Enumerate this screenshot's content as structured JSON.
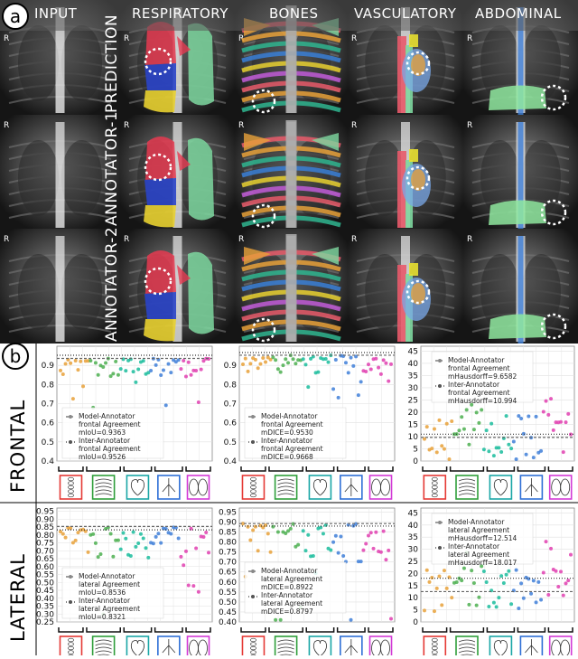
{
  "panel_a": {
    "label": "a",
    "columns": [
      "INPUT",
      "RESPIRATORY",
      "BONES",
      "VASCULATORY",
      "ABDOMINAL"
    ],
    "rows": [
      "PREDICTION",
      "ANNOTATOR-1",
      "ANNOTATOR-2"
    ],
    "corner_marker": "R"
  },
  "panel_b": {
    "label": "b",
    "row_labels": [
      "FRONTAL",
      "LATERAL"
    ]
  },
  "chart_data": [
    {
      "type": "scatter",
      "view": "frontal",
      "metric": "mIoU",
      "ylim": [
        0.4,
        1.0
      ],
      "yticks": [
        "0.9",
        "0.8",
        "0.7",
        "0.6",
        "0.5",
        "0.4"
      ],
      "legend": {
        "model_title": "Model-Annotator",
        "model_sub": "frontal Agreement",
        "model_value": "mIoU=0.9363",
        "inter_title": "Inter-Annotator",
        "inter_sub": "frontal Agreement",
        "inter_value": "mIoU=0.9526"
      },
      "model_mean": 0.9363,
      "inter_mean": 0.9526
    },
    {
      "type": "scatter",
      "view": "frontal",
      "metric": "mDICE",
      "ylim": [
        0.4,
        1.0
      ],
      "yticks": [
        "0.9",
        "0.8",
        "0.7",
        "0.6",
        "0.5",
        "0.4"
      ],
      "legend": {
        "model_title": "Model-Annotator",
        "model_sub": "frontal Agreement",
        "model_value": "mDICE=0.9530",
        "inter_title": "Inter-Annotator",
        "inter_sub": "frontal Agreement",
        "inter_value": "mDICE=0.9668"
      },
      "model_mean": 0.953,
      "inter_mean": 0.9668
    },
    {
      "type": "scatter",
      "view": "frontal",
      "metric": "mHausdorff",
      "ylim": [
        0,
        47
      ],
      "yticks": [
        "45",
        "40",
        "35",
        "30",
        "25",
        "20",
        "15",
        "10",
        "5",
        "0"
      ],
      "legend": {
        "model_title": "Model-Annotator",
        "model_sub": "frontal Agreement",
        "model_value": "mHausdorff=9.6582",
        "inter_title": "Inter-Annotator",
        "inter_sub": "frontal Agreement",
        "inter_value": "mHausdorff=10.994"
      },
      "model_mean": 9.6582,
      "inter_mean": 10.994
    },
    {
      "type": "scatter",
      "view": "lateral",
      "metric": "mIoU",
      "ylim": [
        0.25,
        0.97
      ],
      "yticks": [
        "0.95",
        "0.90",
        "0.85",
        "0.80",
        "0.75",
        "0.70",
        "0.65",
        "0.60",
        "0.55",
        "0.50",
        "0.45",
        "0.40",
        "0.35",
        "0.30",
        "0.25"
      ],
      "legend": {
        "model_title": "Model-Annotator",
        "model_sub": "lateral Agreement",
        "model_value": "mIoU=0.8536",
        "inter_title": "Inter-Annotator",
        "inter_sub": "lateral Agreement",
        "inter_value": "mIoU=0.8321"
      },
      "model_mean": 0.8536,
      "inter_mean": 0.8321
    },
    {
      "type": "scatter",
      "view": "lateral",
      "metric": "mDICE",
      "ylim": [
        0.4,
        0.97
      ],
      "yticks": [
        "0.95",
        "0.90",
        "0.85",
        "0.80",
        "0.75",
        "0.70",
        "0.65",
        "0.60",
        "0.55",
        "0.50",
        "0.45",
        "0.40"
      ],
      "legend": {
        "model_title": "Model-Annotator",
        "model_sub": "lateral Agreement",
        "model_value": "mDICE=0.8922",
        "inter_title": "Inter-Annotator",
        "inter_sub": "lateral Agreement",
        "inter_value": "mDICE=0.8797"
      },
      "model_mean": 0.8922,
      "inter_mean": 0.8797
    },
    {
      "type": "scatter",
      "view": "lateral",
      "metric": "mHausdorff",
      "ylim": [
        0,
        47
      ],
      "yticks": [
        "45",
        "40",
        "35",
        "30",
        "25",
        "20",
        "15",
        "10",
        "5",
        "0"
      ],
      "legend": {
        "model_title": "Model-Annotator",
        "model_sub": "lateral Agreement",
        "model_value": "mHausdorff=12.514",
        "inter_title": "Inter-Annotator",
        "inter_sub": "lateral Agreement",
        "inter_value": "mHausdorff=18.017"
      },
      "model_mean": 12.514,
      "inter_mean": 18.017
    }
  ],
  "colors": {
    "bones": "#e8a13a",
    "respiratory": "#4caf50",
    "vasculatory": "#1abc9c",
    "abdominal": "#3f7fd8",
    "heart": "#9b59b6",
    "lungs": "#e040b0",
    "box_red": "#e53935",
    "box_green": "#2e9e3a",
    "box_teal": "#1aa6a6",
    "box_blue": "#2e6fd6",
    "box_magenta": "#d33ad6"
  }
}
